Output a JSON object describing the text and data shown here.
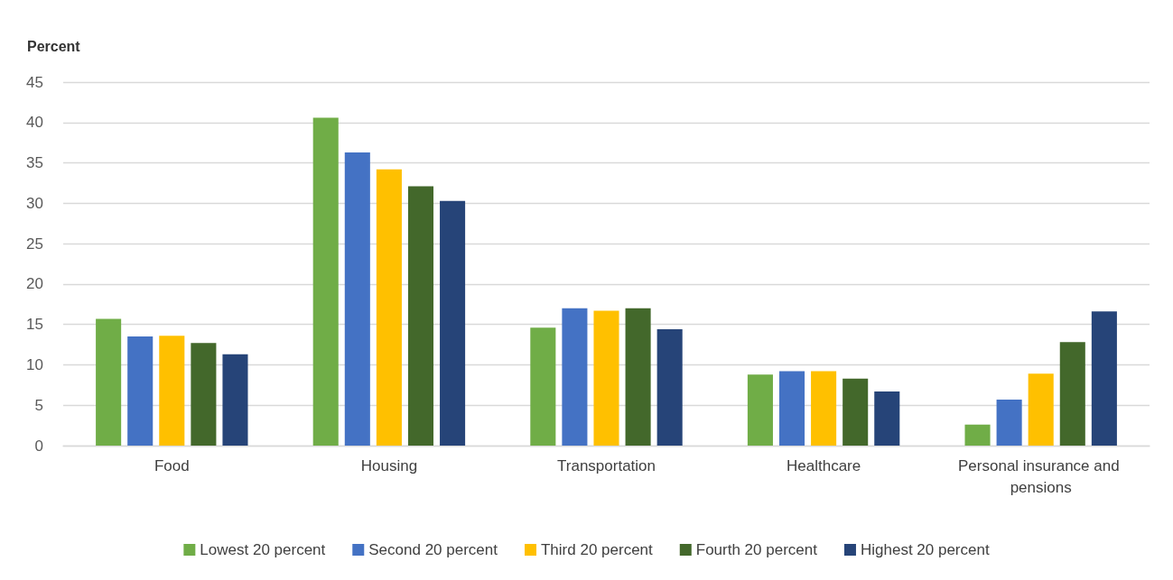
{
  "chart_data": {
    "type": "bar",
    "ylabel": "Percent",
    "categories": [
      "Food",
      "Housing",
      "Transportation",
      "Healthcare",
      "Personal insurance and pensions"
    ],
    "series": [
      {
        "name": "Lowest 20 percent",
        "color": "#70ad47",
        "values": [
          15.7,
          40.6,
          14.6,
          8.8,
          2.6
        ]
      },
      {
        "name": "Second 20 percent",
        "color": "#4472c4",
        "values": [
          13.5,
          36.3,
          17.0,
          9.2,
          5.7
        ]
      },
      {
        "name": "Third 20 percent",
        "color": "#ffc000",
        "values": [
          13.6,
          34.2,
          16.7,
          9.2,
          8.9
        ]
      },
      {
        "name": "Fourth 20 percent",
        "color": "#43682b",
        "values": [
          12.7,
          32.1,
          17.0,
          8.3,
          12.8
        ]
      },
      {
        "name": "Highest 20 percent",
        "color": "#264478",
        "values": [
          11.3,
          30.3,
          14.4,
          6.7,
          16.6
        ]
      }
    ],
    "ylim": [
      0,
      45
    ],
    "yticks": [
      0,
      5,
      10,
      15,
      20,
      25,
      30,
      35,
      40,
      45
    ],
    "grid": "y",
    "legend": "bottom"
  }
}
